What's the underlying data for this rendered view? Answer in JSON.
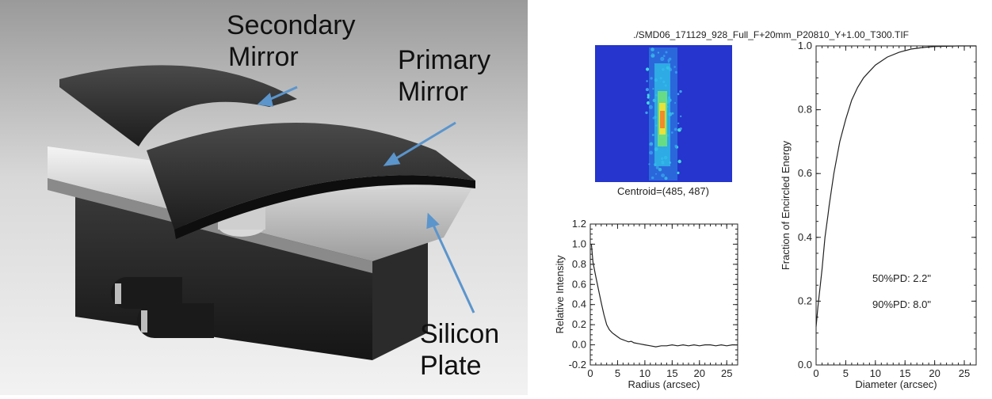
{
  "figure": {
    "photo": {
      "labels": {
        "secondary_mirror_line1": "Secondary",
        "secondary_mirror_line2": "Mirror",
        "primary_mirror_line1": "Primary",
        "primary_mirror_line2": "Mirror",
        "silicon_plate_line1": "Silicon",
        "silicon_plate_line2": "Plate"
      },
      "arrow_color": "#5b95cc"
    },
    "file_title": "./SMD06_171129_928_Full_F+20mm_P20810_Y+1.00_T300.TIF",
    "image_caption": "Centroid=(485, 487)",
    "annotations": {
      "pd50": "50%PD:  2.2\"",
      "pd90": "90%PD:  8.0\""
    }
  },
  "chart_data": [
    {
      "type": "line",
      "xlabel": "Radius (arcsec)",
      "ylabel": "Relative Intensity",
      "xlim": [
        0,
        27
      ],
      "ylim": [
        -0.2,
        1.2
      ],
      "xticks": [
        "0",
        "5",
        "10",
        "15",
        "20",
        "25"
      ],
      "yticks": [
        "-0.2",
        "0.0",
        "0.2",
        "0.4",
        "0.6",
        "0.8",
        "1.0",
        "1.2"
      ],
      "x": [
        0.2,
        0.5,
        1.0,
        1.5,
        2.0,
        2.5,
        3.0,
        3.5,
        4.0,
        4.5,
        5.0,
        5.5,
        6.0,
        6.5,
        7.0,
        7.5,
        8.0,
        9.0,
        10.0,
        11.0,
        12.0,
        13.0,
        14.0,
        15.0,
        16.0,
        17.0,
        18.0,
        19.0,
        20.0,
        21.0,
        22.0,
        23.0,
        24.0,
        25.0,
        26.0,
        27.0
      ],
      "y": [
        1.0,
        0.82,
        0.68,
        0.55,
        0.42,
        0.3,
        0.2,
        0.15,
        0.12,
        0.1,
        0.08,
        0.06,
        0.05,
        0.04,
        0.03,
        0.035,
        0.02,
        0.01,
        0.0,
        -0.01,
        -0.02,
        -0.01,
        -0.01,
        0.0,
        -0.01,
        0.0,
        -0.01,
        0.0,
        -0.01,
        0.0,
        0.0,
        -0.01,
        0.0,
        -0.01,
        0.0,
        0.0
      ],
      "grid": false
    },
    {
      "type": "line",
      "xlabel": "Diameter (arcsec)",
      "ylabel": "Fraction of Encircled Energy",
      "xlim": [
        0,
        27
      ],
      "ylim": [
        0.0,
        1.0
      ],
      "xticks": [
        "0",
        "5",
        "10",
        "15",
        "20",
        "25"
      ],
      "yticks": [
        "0.0",
        "0.2",
        "0.4",
        "0.6",
        "0.8",
        "1.0"
      ],
      "x": [
        0,
        0.3,
        1.0,
        1.5,
        2.0,
        2.2,
        3.0,
        4.0,
        5.0,
        6.0,
        7.0,
        8.0,
        9.0,
        10.0,
        12.0,
        14.0,
        16.0,
        18.0,
        20.0,
        22.0,
        24.0,
        26.0,
        27.0
      ],
      "y": [
        0.12,
        0.18,
        0.3,
        0.4,
        0.47,
        0.5,
        0.6,
        0.7,
        0.77,
        0.83,
        0.87,
        0.9,
        0.92,
        0.94,
        0.965,
        0.98,
        0.99,
        0.995,
        0.998,
        0.999,
        1.0,
        1.0,
        1.0
      ],
      "grid": false
    }
  ]
}
